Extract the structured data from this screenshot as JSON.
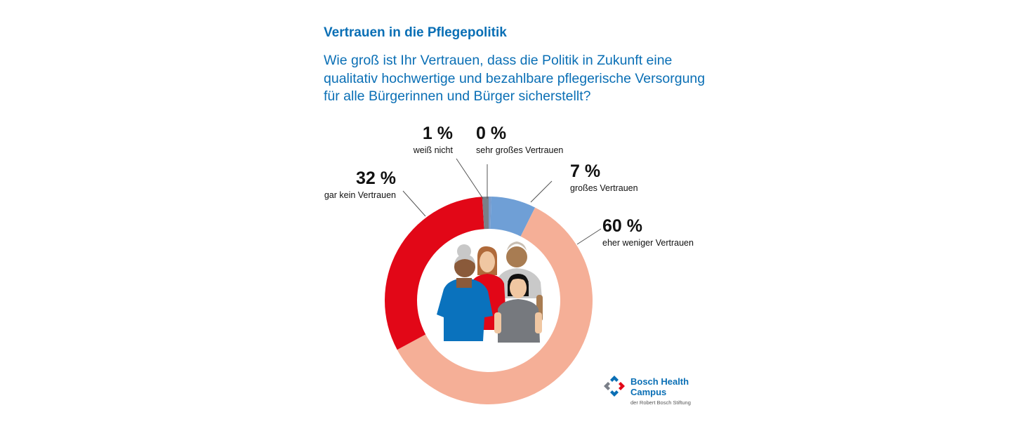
{
  "title": "Vertrauen in die Pflegepolitik",
  "question": "Wie groß ist Ihr Vertrauen, dass die Politik in Zukunft eine qualitativ hochwertige und bezahlbare pflegerische Versorgung für alle Bürgerinnen und Bürger sicherstellt?",
  "chart_data": {
    "type": "pie",
    "title": "Vertrauen in die Pflegepolitik",
    "slices": [
      {
        "label": "sehr großes Vertrauen",
        "display": "0 %",
        "value": 0.4,
        "color": "#7a9ccc"
      },
      {
        "label": "großes Vertrauen",
        "display": "7 %",
        "value": 7,
        "color": "#6f9fd6"
      },
      {
        "label": "eher weniger Vertrauen",
        "display": "60 %",
        "value": 60,
        "color": "#f5af97"
      },
      {
        "label": "gar kein Vertrauen",
        "display": "32 %",
        "value": 32,
        "color": "#e20717"
      },
      {
        "label": "weiß nicht",
        "display": "1 %",
        "value": 1,
        "color": "#7a7f88"
      }
    ]
  },
  "logo": {
    "line1": "Bosch Health",
    "line2": "Campus",
    "sub": "der Robert Bosch Stiftung"
  }
}
